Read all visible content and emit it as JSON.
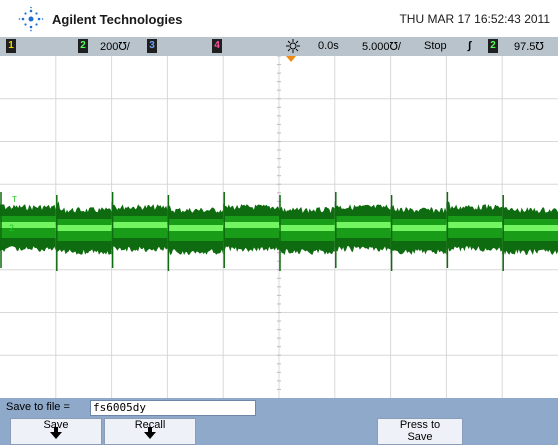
{
  "header": {
    "brand": "Agilent Technologies",
    "timestamp": "THU MAR 17 16:52:43 2011",
    "logo_icon": "agilent-spark-icon"
  },
  "status_bar": {
    "ch1": "1",
    "ch2": "2",
    "ch2_scale": "200℧/",
    "ch3": "3",
    "ch4": "4",
    "time_ref_icon": "trigger-position-icon",
    "delay": "0.0s",
    "time_scale": "5.000℧/",
    "run_state": "Stop",
    "trigger_slope_icon": "rising-edge-icon",
    "trigger_channel": "2",
    "trigger_level": "97.5℧"
  },
  "waveform": {
    "channel": "2",
    "color": "#22c722",
    "dark_color": "#0f6b0f",
    "ground_marker": "2",
    "segments": 10
  },
  "save_row": {
    "label": "Save to file = ",
    "filename": "fs6005dy"
  },
  "softkeys": {
    "save": "Save",
    "recall": "Recall",
    "press_to_save_line1": "Press to",
    "press_to_save_line2": "Save"
  },
  "colors": {
    "ch1": "#e8d800",
    "ch2": "#55ff55",
    "ch3": "#6aa0ff",
    "ch4": "#ff4fa0",
    "status_bg": "#b9c3cc",
    "softkey_bg": "#8ea9c9"
  }
}
